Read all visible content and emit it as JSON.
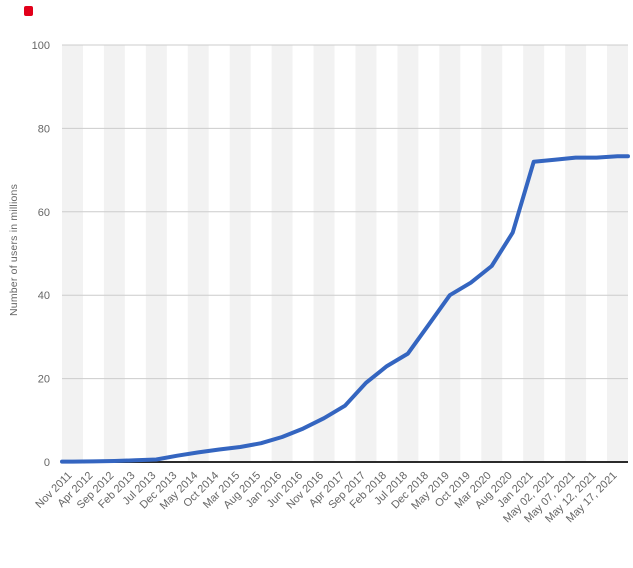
{
  "page": {
    "background": "#ffffff"
  },
  "marker": {
    "name": "red-dot",
    "color": "#e2001a"
  },
  "chart_data": {
    "type": "line",
    "title": "",
    "xlabel": "",
    "ylabel": "Number of users in millions",
    "ylim": [
      0,
      100
    ],
    "yticks": [
      0,
      20,
      40,
      60,
      80,
      100
    ],
    "grid": true,
    "legend": false,
    "legend_position": "none",
    "line_color": "#3465c0",
    "band_color": "#f2f2f2",
    "grid_color": "#cccccc",
    "axis_color": "#2b2b2b",
    "tick_color": "#666666",
    "categories": [
      "Nov 2011",
      "Apr 2012",
      "Sep 2012",
      "Feb 2013",
      "Jul 2013",
      "Dec 2013",
      "May 2014",
      "Oct 2014",
      "Mar 2015",
      "Aug 2015",
      "Jan 2016",
      "Jun 2016",
      "Nov 2016",
      "Apr 2017",
      "Sep 2017",
      "Feb 2018",
      "Jul 2018",
      "Dec 2018",
      "May 2019",
      "Oct 2019",
      "Mar 2020",
      "Aug 2020",
      "Jan 2021",
      "May 02, 2021",
      "May 07, 2021",
      "May 12, 2021",
      "May 17, 2021"
    ],
    "values": [
      0.1,
      0.15,
      0.25,
      0.4,
      0.6,
      1.5,
      2.3,
      3,
      3.6,
      4.5,
      6,
      8,
      10.5,
      13.5,
      19,
      23,
      26,
      33,
      40,
      43,
      47,
      55,
      72,
      72.5,
      73,
      73,
      73.3
    ]
  }
}
